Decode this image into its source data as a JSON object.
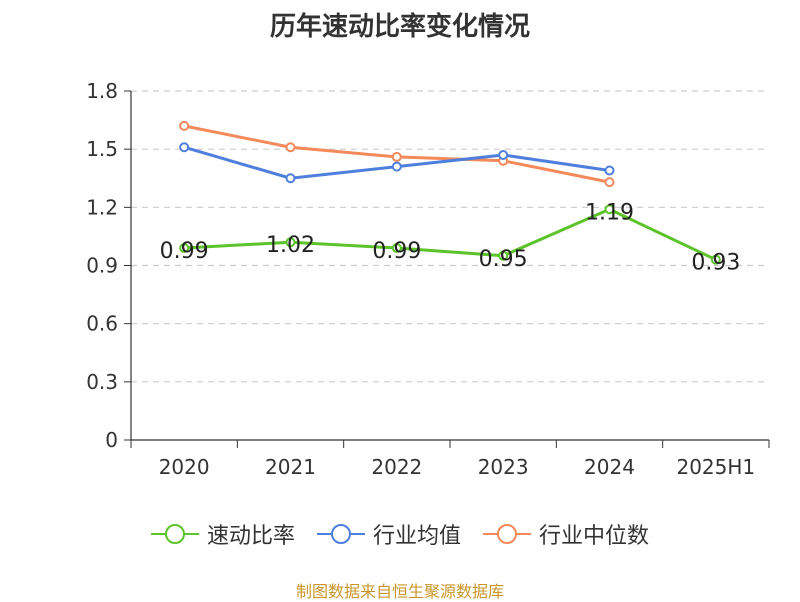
{
  "chart_data": {
    "type": "line",
    "title": "历年速动比率变化情况",
    "categories": [
      "2020",
      "2021",
      "2022",
      "2023",
      "2024",
      "2025H1"
    ],
    "ylim": [
      0,
      1.8
    ],
    "yticks": [
      "0",
      "0.3",
      "0.6",
      "0.9",
      "1.2",
      "1.5",
      "1.8"
    ],
    "grid": true,
    "legend_position": "bottom",
    "series": [
      {
        "name": "速动比率",
        "color": "#5cc42a",
        "values": [
          0.99,
          1.02,
          0.99,
          0.95,
          1.19,
          0.93
        ],
        "labels": [
          "0.99",
          "1.02",
          "0.99",
          "0.95",
          "1.19",
          "0.93"
        ]
      },
      {
        "name": "行业均值",
        "color": "#4f7fdc",
        "values": [
          1.51,
          1.35,
          1.41,
          1.47,
          1.39,
          null
        ]
      },
      {
        "name": "行业中位数",
        "color": "#f4895a",
        "values": [
          1.62,
          1.51,
          1.46,
          1.44,
          1.33,
          null
        ]
      }
    ]
  },
  "source_text": "制图数据来自恒生聚源数据库"
}
